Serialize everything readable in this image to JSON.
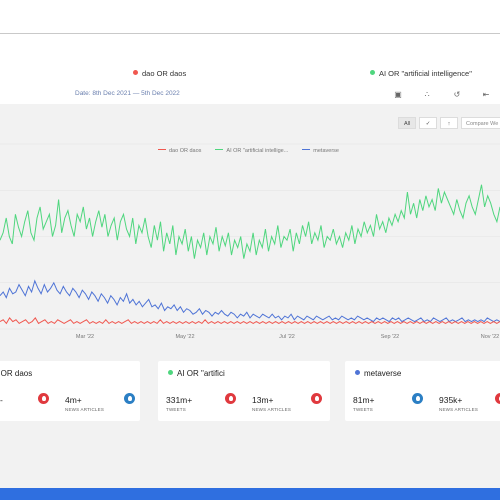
{
  "legend_terms": [
    {
      "label": "dao OR daos",
      "color": "#f0574f"
    },
    {
      "label": "AI OR \"artificial intelligence\"",
      "color": "#4fd67e"
    }
  ],
  "toolbar": {
    "date_range": "Date: 8th Dec 2021 — 5th Dec 2022",
    "icons": [
      "download-icon",
      "share-icon",
      "history-icon",
      "collapse-icon"
    ]
  },
  "filters": {
    "all": "All",
    "twitter_icon": "twitter-icon",
    "news_icon": "news-icon",
    "compare": "Compare We"
  },
  "chart_data": {
    "type": "line",
    "series": [
      {
        "name": "dao OR daos",
        "color": "#f0574f"
      },
      {
        "name": "AI OR \"artificial intellige...",
        "color": "#4fd67e"
      },
      {
        "name": "metaverse",
        "color": "#4f74d6"
      }
    ],
    "x_ticks": [
      "Mar '22",
      "May '22",
      "Jul '22",
      "Sep '22",
      "Nov '22"
    ],
    "grid": true,
    "ai_points": [
      0.48,
      0.52,
      0.6,
      0.5,
      0.46,
      0.62,
      0.55,
      0.5,
      0.58,
      0.64,
      0.52,
      0.48,
      0.6,
      0.66,
      0.54,
      0.58,
      0.62,
      0.5,
      0.56,
      0.7,
      0.52,
      0.6,
      0.64,
      0.56,
      0.5,
      0.62,
      0.58,
      0.66,
      0.54,
      0.6,
      0.5,
      0.58,
      0.64,
      0.55,
      0.62,
      0.5,
      0.56,
      0.6,
      0.48,
      0.58,
      0.62,
      0.54,
      0.5,
      0.6,
      0.46,
      0.56,
      0.52,
      0.6,
      0.5,
      0.44,
      0.56,
      0.48,
      0.58,
      0.42,
      0.52,
      0.46,
      0.56,
      0.4,
      0.5,
      0.46,
      0.54,
      0.42,
      0.5,
      0.38,
      0.48,
      0.44,
      0.52,
      0.4,
      0.5,
      0.46,
      0.55,
      0.42,
      0.5,
      0.45,
      0.52,
      0.4,
      0.48,
      0.44,
      0.5,
      0.38,
      0.46,
      0.42,
      0.52,
      0.4,
      0.48,
      0.44,
      0.54,
      0.42,
      0.5,
      0.46,
      0.56,
      0.44,
      0.5,
      0.48,
      0.54,
      0.42,
      0.52,
      0.46,
      0.56,
      0.5,
      0.58,
      0.46,
      0.52,
      0.48,
      0.56,
      0.44,
      0.5,
      0.48,
      0.54,
      0.46,
      0.5,
      0.44,
      0.52,
      0.48,
      0.56,
      0.46,
      0.54,
      0.5,
      0.58,
      0.52,
      0.56,
      0.5,
      0.62,
      0.54,
      0.58,
      0.52,
      0.6,
      0.56,
      0.62,
      0.58,
      0.64,
      0.6,
      0.74,
      0.62,
      0.68,
      0.6,
      0.7,
      0.64,
      0.72,
      0.66,
      0.7,
      0.64,
      0.76,
      0.68,
      0.74,
      0.7,
      0.66,
      0.62,
      0.7,
      0.64,
      0.6,
      0.68,
      0.72,
      0.66,
      0.62,
      0.7,
      0.78,
      0.66,
      0.72,
      0.68,
      0.62,
      0.58,
      0.66
    ],
    "metaverse_points": [
      0.18,
      0.2,
      0.17,
      0.22,
      0.19,
      0.2,
      0.24,
      0.21,
      0.18,
      0.23,
      0.2,
      0.26,
      0.22,
      0.19,
      0.24,
      0.2,
      0.22,
      0.25,
      0.21,
      0.19,
      0.23,
      0.2,
      0.18,
      0.22,
      0.2,
      0.17,
      0.21,
      0.19,
      0.16,
      0.2,
      0.18,
      0.15,
      0.19,
      0.17,
      0.14,
      0.18,
      0.16,
      0.13,
      0.17,
      0.15,
      0.19,
      0.14,
      0.16,
      0.13,
      0.15,
      0.12,
      0.14,
      0.16,
      0.12,
      0.13,
      0.11,
      0.14,
      0.1,
      0.12,
      0.11,
      0.13,
      0.1,
      0.12,
      0.09,
      0.11,
      0.1,
      0.08,
      0.09,
      0.11,
      0.08,
      0.1,
      0.09,
      0.07,
      0.09,
      0.08,
      0.1,
      0.08,
      0.07,
      0.09,
      0.08,
      0.06,
      0.08,
      0.07,
      0.09,
      0.06,
      0.08,
      0.07,
      0.06,
      0.08,
      0.07,
      0.06,
      0.08,
      0.06,
      0.07,
      0.05,
      0.07,
      0.06,
      0.08,
      0.05,
      0.07,
      0.06,
      0.05,
      0.07,
      0.06,
      0.05,
      0.07,
      0.06,
      0.05,
      0.06,
      0.07,
      0.05,
      0.06,
      0.05,
      0.07,
      0.06,
      0.05,
      0.06,
      0.05,
      0.07,
      0.06,
      0.05,
      0.06,
      0.05,
      0.04,
      0.06,
      0.05,
      0.06,
      0.05,
      0.04,
      0.06,
      0.05,
      0.06,
      0.04,
      0.05,
      0.06,
      0.05,
      0.04,
      0.05,
      0.06,
      0.04,
      0.05,
      0.04,
      0.06,
      0.05,
      0.04,
      0.05,
      0.06,
      0.04,
      0.05,
      0.04,
      0.05,
      0.06,
      0.04,
      0.05,
      0.04,
      0.05,
      0.04,
      0.05,
      0.04,
      0.06,
      0.05,
      0.04,
      0.05,
      0.04
    ],
    "dao_points": [
      0.04,
      0.05,
      0.03,
      0.06,
      0.04,
      0.05,
      0.03,
      0.04,
      0.05,
      0.03,
      0.04,
      0.06,
      0.03,
      0.04,
      0.05,
      0.03,
      0.04,
      0.03,
      0.05,
      0.04,
      0.03,
      0.04,
      0.05,
      0.03,
      0.04,
      0.03,
      0.04,
      0.05,
      0.03,
      0.04,
      0.03,
      0.04,
      0.03,
      0.05,
      0.03,
      0.04,
      0.03,
      0.04,
      0.03,
      0.04,
      0.05,
      0.03,
      0.04,
      0.03,
      0.04,
      0.03,
      0.04,
      0.03,
      0.04,
      0.03,
      0.05,
      0.03,
      0.04,
      0.03,
      0.04,
      0.03,
      0.04,
      0.03,
      0.04,
      0.03,
      0.04,
      0.03,
      0.04,
      0.03,
      0.05,
      0.03,
      0.04,
      0.03,
      0.04,
      0.03,
      0.04,
      0.03,
      0.04,
      0.03,
      0.04,
      0.03,
      0.04,
      0.03,
      0.04,
      0.03,
      0.04,
      0.03,
      0.04,
      0.03,
      0.04,
      0.03,
      0.04,
      0.03,
      0.04,
      0.03,
      0.04,
      0.03,
      0.04,
      0.03,
      0.04,
      0.03,
      0.04,
      0.03,
      0.04,
      0.03,
      0.04,
      0.03,
      0.04,
      0.03,
      0.04,
      0.03,
      0.04,
      0.03,
      0.04,
      0.03,
      0.04,
      0.03,
      0.04,
      0.03,
      0.04,
      0.03,
      0.04,
      0.03,
      0.04,
      0.03,
      0.04,
      0.03,
      0.04,
      0.03,
      0.04,
      0.03,
      0.04,
      0.03,
      0.04,
      0.03,
      0.04,
      0.03,
      0.04,
      0.03,
      0.04,
      0.03,
      0.04,
      0.03,
      0.04,
      0.03,
      0.04,
      0.03,
      0.04,
      0.03,
      0.04,
      0.03,
      0.04,
      0.03,
      0.04,
      0.03,
      0.04,
      0.03,
      0.04,
      0.03,
      0.04,
      0.03,
      0.04
    ]
  },
  "cards": [
    {
      "title": "o OR daos",
      "color": "#f0574f",
      "stats": [
        {
          "value": "-",
          "label": "",
          "badge": "red"
        },
        {
          "value": "4m+",
          "label": "NEWS ARTICLES",
          "badge": "blue"
        }
      ]
    },
    {
      "title": "AI OR \"artifici",
      "color": "#4fd67e",
      "stats": [
        {
          "value": "331m+",
          "label": "TWEETS",
          "badge": "red"
        },
        {
          "value": "13m+",
          "label": "NEWS ARTICLES",
          "badge": "red"
        }
      ]
    },
    {
      "title": "metaverse",
      "color": "#4f74d6",
      "stats": [
        {
          "value": "81m+",
          "label": "TWEETS",
          "badge": "blue"
        },
        {
          "value": "935k+",
          "label": "NEWS ARTICLES",
          "badge": "red"
        }
      ]
    }
  ]
}
